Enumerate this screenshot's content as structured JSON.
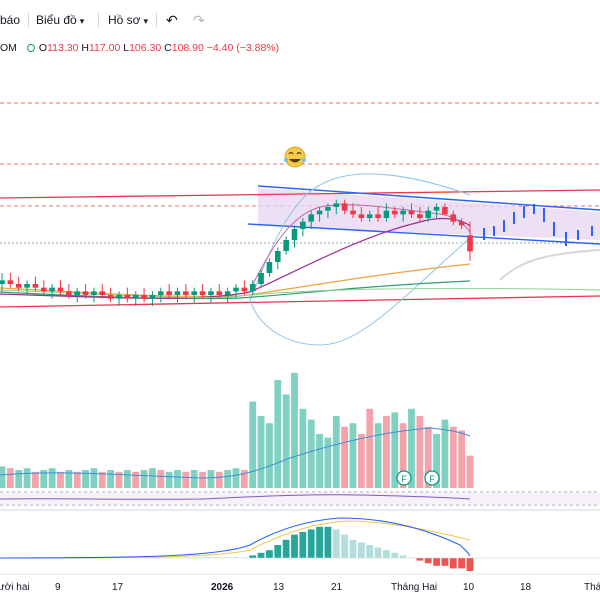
{
  "toolbar": {
    "left_partial": "báo",
    "chart_type_label": "Biểu đồ",
    "profile_label": "Hồ sơ",
    "undo_icon": "undo-icon",
    "redo_icon": "redo-icon"
  },
  "legend": {
    "symbol_partial": "OM",
    "open_label": "O",
    "open": "113.30",
    "high_label": "H",
    "high": "117.00",
    "low_label": "L",
    "low": "106.30",
    "close_label": "C",
    "close": "108.90",
    "change": "−4.40 (−3.88%)"
  },
  "x_axis": {
    "ticks": [
      "ười hai",
      "9",
      "17",
      "2026",
      "13",
      "21",
      "Tháng Hai",
      "10",
      "18",
      "Thá"
    ]
  },
  "markers": {
    "earnings_label": "F"
  },
  "colors": {
    "up": "#089981",
    "down": "#f23645",
    "volume_up": "#7fd1c2",
    "volume_down": "#f4a3ab",
    "channel": "#2962ff",
    "resistance": "#e53950",
    "band": "#8fc3e6"
  },
  "chart_data": {
    "type": "candlestick",
    "title": "",
    "ohlc": {
      "open": 113.3,
      "high": 117.0,
      "low": 106.3,
      "close": 108.9,
      "change": -4.4,
      "change_pct": -3.88
    },
    "candles": [
      {
        "o": 100,
        "h": 103,
        "l": 98,
        "c": 101
      },
      {
        "o": 101,
        "h": 103,
        "l": 99,
        "c": 100
      },
      {
        "o": 100,
        "h": 102,
        "l": 98,
        "c": 99
      },
      {
        "o": 99,
        "h": 101,
        "l": 97,
        "c": 100
      },
      {
        "o": 100,
        "h": 102,
        "l": 98,
        "c": 99
      },
      {
        "o": 99,
        "h": 101,
        "l": 97,
        "c": 98
      },
      {
        "o": 98,
        "h": 100,
        "l": 96,
        "c": 99
      },
      {
        "o": 99,
        "h": 101,
        "l": 97,
        "c": 98
      },
      {
        "o": 98,
        "h": 100,
        "l": 96,
        "c": 97
      },
      {
        "o": 97,
        "h": 99,
        "l": 95,
        "c": 98
      },
      {
        "o": 98,
        "h": 100,
        "l": 96,
        "c": 97
      },
      {
        "o": 97,
        "h": 99,
        "l": 95,
        "c": 98
      },
      {
        "o": 98,
        "h": 100,
        "l": 96,
        "c": 97
      },
      {
        "o": 97,
        "h": 99,
        "l": 95,
        "c": 96
      },
      {
        "o": 96,
        "h": 98,
        "l": 94,
        "c": 97
      },
      {
        "o": 97,
        "h": 99,
        "l": 95,
        "c": 96
      },
      {
        "o": 96,
        "h": 98,
        "l": 94,
        "c": 97
      },
      {
        "o": 97,
        "h": 99,
        "l": 95,
        "c": 96
      },
      {
        "o": 96,
        "h": 98,
        "l": 94,
        "c": 97
      },
      {
        "o": 97,
        "h": 99,
        "l": 95,
        "c": 98
      },
      {
        "o": 98,
        "h": 100,
        "l": 96,
        "c": 97
      },
      {
        "o": 97,
        "h": 99,
        "l": 95,
        "c": 98
      },
      {
        "o": 98,
        "h": 100,
        "l": 96,
        "c": 97
      },
      {
        "o": 97,
        "h": 99,
        "l": 95,
        "c": 98
      },
      {
        "o": 98,
        "h": 100,
        "l": 96,
        "c": 97
      },
      {
        "o": 97,
        "h": 99,
        "l": 95,
        "c": 98
      },
      {
        "o": 98,
        "h": 100,
        "l": 96,
        "c": 97
      },
      {
        "o": 97,
        "h": 99,
        "l": 95,
        "c": 98
      },
      {
        "o": 98,
        "h": 100,
        "l": 96,
        "c": 99
      },
      {
        "o": 99,
        "h": 101,
        "l": 97,
        "c": 98
      },
      {
        "o": 98,
        "h": 101,
        "l": 97,
        "c": 100
      },
      {
        "o": 100,
        "h": 104,
        "l": 99,
        "c": 103
      },
      {
        "o": 103,
        "h": 107,
        "l": 102,
        "c": 106
      },
      {
        "o": 106,
        "h": 110,
        "l": 104,
        "c": 109
      },
      {
        "o": 109,
        "h": 113,
        "l": 108,
        "c": 112
      },
      {
        "o": 112,
        "h": 116,
        "l": 110,
        "c": 115
      },
      {
        "o": 115,
        "h": 118,
        "l": 113,
        "c": 117
      },
      {
        "o": 117,
        "h": 120,
        "l": 115,
        "c": 119
      },
      {
        "o": 119,
        "h": 121,
        "l": 117,
        "c": 120
      },
      {
        "o": 120,
        "h": 122,
        "l": 118,
        "c": 121
      },
      {
        "o": 121,
        "h": 123,
        "l": 119,
        "c": 122
      },
      {
        "o": 122,
        "h": 123,
        "l": 119,
        "c": 120
      },
      {
        "o": 120,
        "h": 122,
        "l": 118,
        "c": 119
      },
      {
        "o": 119,
        "h": 121,
        "l": 117,
        "c": 118
      },
      {
        "o": 118,
        "h": 120,
        "l": 117,
        "c": 119
      },
      {
        "o": 119,
        "h": 121,
        "l": 117,
        "c": 118
      },
      {
        "o": 118,
        "h": 122,
        "l": 117,
        "c": 120
      },
      {
        "o": 120,
        "h": 121,
        "l": 118,
        "c": 119
      },
      {
        "o": 119,
        "h": 121,
        "l": 117,
        "c": 120
      },
      {
        "o": 120,
        "h": 122,
        "l": 118,
        "c": 119
      },
      {
        "o": 119,
        "h": 121,
        "l": 117,
        "c": 118
      },
      {
        "o": 118,
        "h": 121,
        "l": 117,
        "c": 120
      },
      {
        "o": 120,
        "h": 122,
        "l": 118,
        "c": 121
      },
      {
        "o": 121,
        "h": 122,
        "l": 119,
        "c": 119
      },
      {
        "o": 119,
        "h": 120,
        "l": 116,
        "c": 117
      },
      {
        "o": 117,
        "h": 118,
        "l": 115,
        "c": 116
      },
      {
        "o": 113.3,
        "h": 117,
        "l": 106.3,
        "c": 108.9
      }
    ],
    "volume": [
      12,
      11,
      10,
      11,
      9,
      10,
      11,
      9,
      10,
      9,
      10,
      11,
      9,
      10,
      9,
      10,
      9,
      10,
      11,
      10,
      9,
      10,
      9,
      10,
      9,
      10,
      9,
      10,
      11,
      10,
      48,
      40,
      36,
      60,
      52,
      64,
      44,
      38,
      30,
      28,
      40,
      34,
      36,
      30,
      44,
      36,
      40,
      42,
      36,
      44,
      40,
      34,
      30,
      38,
      34,
      32,
      18
    ],
    "volume_up": [
      true,
      false,
      true,
      true,
      false,
      true,
      true,
      false,
      true,
      false,
      true,
      true,
      false,
      true,
      false,
      true,
      false,
      true,
      true,
      false,
      true,
      true,
      false,
      true,
      false,
      true,
      false,
      true,
      true,
      false,
      true,
      true,
      true,
      true,
      true,
      true,
      true,
      true,
      true,
      true,
      true,
      false,
      true,
      false,
      false,
      true,
      false,
      true,
      false,
      true,
      false,
      false,
      true,
      true,
      false,
      false,
      false
    ],
    "histogram": [
      0,
      0,
      0,
      0,
      0,
      0,
      0,
      0,
      0,
      0,
      0,
      0,
      0,
      0,
      0,
      0,
      0,
      0,
      0,
      0,
      0,
      0,
      0,
      0,
      0,
      0,
      0,
      0,
      0,
      0,
      1,
      2,
      3,
      5,
      7,
      9,
      10,
      11,
      12,
      12,
      11,
      9,
      7,
      6,
      5,
      4,
      3,
      2,
      1,
      0,
      -1,
      -2,
      -3,
      -3,
      -4,
      -4,
      -5
    ]
  }
}
